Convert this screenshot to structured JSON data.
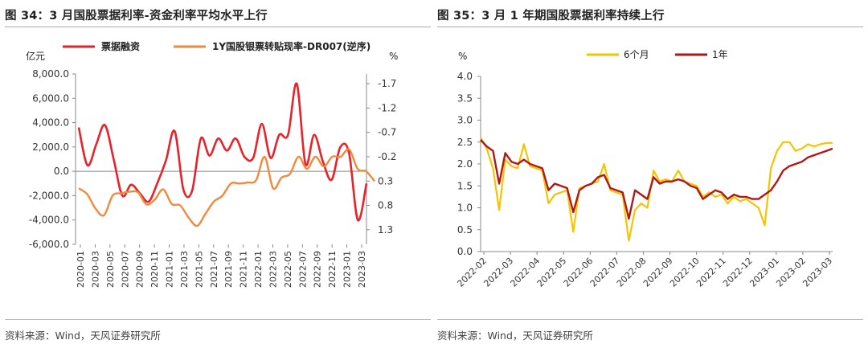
{
  "panels": {
    "left": {
      "title": "图 34：3 月国股票据利率-资金利率平均水平上行",
      "source": "资料来源：Wind，天风证券研究所"
    },
    "right": {
      "title": "图 35：3 月 1 年期国股票据利率持续上行",
      "source": "资料来源：Wind，天风证券研究所"
    }
  },
  "chart_data": [
    {
      "type": "line",
      "title": "",
      "y_left_unit": "亿元",
      "y_right_unit": "%",
      "y_left_lim": [
        -6000,
        8000
      ],
      "y_left_ticks": [
        "8,000.0",
        "6,000.0",
        "4,000.0",
        "2,000.0",
        "0.0",
        "-2,000.0",
        "-4,000.0",
        "-6,000.0"
      ],
      "y_right_lim": [
        1.6,
        -1.9
      ],
      "y_right_inverted": true,
      "y_right_ticks": [
        "-1.7",
        "-1.2",
        "-0.7",
        "-0.2",
        "0.3",
        "0.8",
        "1.3"
      ],
      "x_ticks": [
        "2020-01",
        "2020-03",
        "2020-05",
        "2020-07",
        "2020-09",
        "2020-11",
        "2021-01",
        "2021-03",
        "2021-05",
        "2021-07",
        "2021-09",
        "2021-11",
        "2022-01",
        "2022-03",
        "2022-05",
        "2022-07",
        "2022-09",
        "2022-11",
        "2023-01",
        "2023-03"
      ],
      "legend_position": "top",
      "series": [
        {
          "name": "票据融资",
          "axis": "left",
          "color": "#e8222a",
          "values": [
            3600,
            500,
            2200,
            3800,
            1000,
            -2000,
            -1100,
            -1800,
            -2500,
            -1000,
            900,
            3300,
            -1500,
            -1600,
            2700,
            1300,
            2700,
            1700,
            2700,
            1200,
            1100,
            3900,
            1100,
            3000,
            3000,
            7200,
            600,
            3000,
            800,
            -700,
            2000,
            1500,
            -4000,
            -1000
          ]
        },
        {
          "name": "1Y国股银票转贴现率-DR007(逆序)",
          "axis": "right",
          "color": "#f08a3c",
          "values": [
            0.45,
            0.57,
            0.87,
            1.0,
            0.6,
            0.55,
            0.52,
            0.53,
            0.78,
            0.68,
            0.47,
            0.77,
            0.8,
            1.05,
            1.22,
            0.97,
            0.72,
            0.6,
            0.35,
            0.35,
            0.33,
            0.28,
            -0.2,
            0.45,
            0.23,
            0.15,
            -0.2,
            0.05,
            -0.2,
            0.0,
            -0.2,
            -0.2,
            -0.35,
            0.05,
            0.1,
            0.3
          ]
        }
      ]
    },
    {
      "type": "line",
      "title": "",
      "y_unit": "%",
      "ylim": [
        0,
        4.0
      ],
      "y_ticks": [
        "4.0",
        "3.5",
        "3.0",
        "2.5",
        "2.0",
        "1.5",
        "1.0",
        "0.5",
        "0.0"
      ],
      "x_ticks": [
        "2022-02",
        "2022-03",
        "2022-04",
        "2022-05",
        "2022-06",
        "2022-07",
        "2022-08",
        "2022-09",
        "2022-10",
        "2022-11",
        "2022-12",
        "2023-01",
        "2023-02",
        "2023-03"
      ],
      "legend_position": "top",
      "series": [
        {
          "name": "6个月",
          "color": "#f5c400",
          "values": [
            2.6,
            2.35,
            1.9,
            0.95,
            2.1,
            1.95,
            1.9,
            2.45,
            1.95,
            1.9,
            1.85,
            1.1,
            1.3,
            1.35,
            1.4,
            0.45,
            1.45,
            1.5,
            1.55,
            1.6,
            2.0,
            1.4,
            1.35,
            1.3,
            0.25,
            0.95,
            1.1,
            1.0,
            1.85,
            1.6,
            1.65,
            1.6,
            1.85,
            1.6,
            1.55,
            1.5,
            1.25,
            1.35,
            1.25,
            1.3,
            1.1,
            1.25,
            1.15,
            1.2,
            1.1,
            1.0,
            0.6,
            1.9,
            2.3,
            2.5,
            2.5,
            2.3,
            2.35,
            2.45,
            2.4,
            2.45,
            2.48,
            2.48
          ]
        },
        {
          "name": "1年",
          "color": "#b01818",
          "values": [
            2.55,
            2.4,
            2.3,
            1.55,
            2.25,
            2.05,
            2.0,
            2.1,
            2.0,
            1.95,
            1.9,
            1.4,
            1.55,
            1.5,
            1.45,
            0.9,
            1.4,
            1.5,
            1.55,
            1.7,
            1.75,
            1.45,
            1.4,
            1.35,
            0.75,
            1.4,
            1.3,
            1.2,
            1.7,
            1.55,
            1.6,
            1.6,
            1.65,
            1.6,
            1.5,
            1.45,
            1.2,
            1.3,
            1.4,
            1.35,
            1.2,
            1.3,
            1.25,
            1.25,
            1.2,
            1.2,
            1.3,
            1.4,
            1.6,
            1.85,
            1.95,
            2.0,
            2.05,
            2.15,
            2.2,
            2.25,
            2.3,
            2.35
          ]
        }
      ]
    }
  ]
}
